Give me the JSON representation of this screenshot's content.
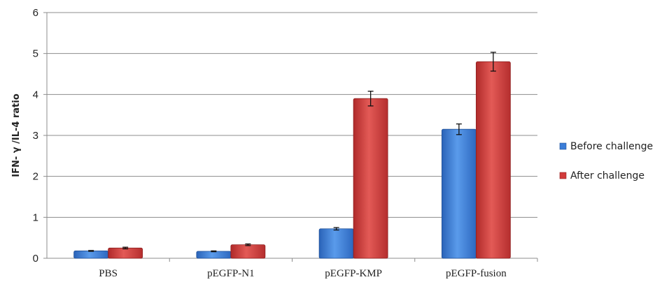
{
  "chart_data": {
    "type": "bar",
    "title": "",
    "xlabel": "",
    "ylabel": "IFN- γ /IL-4 ratio",
    "ylim": [
      0,
      6
    ],
    "yticks": [
      0,
      1,
      2,
      3,
      4,
      5,
      6
    ],
    "grid": true,
    "legend_position": "right",
    "categories": [
      "PBS",
      "pEGFP-N1",
      "pEGFP-KMP",
      "pEGFP-fusion"
    ],
    "series": [
      {
        "name": "Before challenge",
        "color": "#3B7DD8",
        "values": [
          0.18,
          0.17,
          0.72,
          3.15
        ],
        "errors": [
          0.01,
          0.01,
          0.03,
          0.13
        ]
      },
      {
        "name": "After challenge",
        "color": "#D23B3B",
        "values": [
          0.25,
          0.33,
          3.9,
          4.8
        ],
        "errors": [
          0.02,
          0.02,
          0.18,
          0.23
        ]
      }
    ]
  }
}
